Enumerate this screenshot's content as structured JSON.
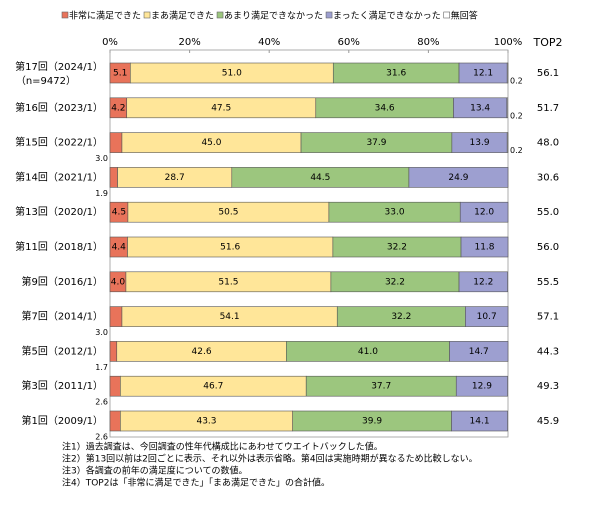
{
  "chart_data": {
    "type": "stacked-bar-horizontal",
    "categories": [
      "第17回（2024/1）",
      "第16回（2023/1）",
      "第15回（2022/1）",
      "第14回（2021/1）",
      "第13回（2020/1）",
      "第11回（2018/1）",
      "第9回（2016/1）",
      "第7回（2014/1）",
      "第5回（2012/1）",
      "第3回（2011/1）",
      "第1回（2009/1）"
    ],
    "category_note": "（n=9472）",
    "series": [
      {
        "name": "非常に満足できた",
        "color": "#e8735a",
        "values": [
          5.1,
          4.2,
          3.0,
          1.9,
          4.5,
          4.4,
          4.0,
          3.0,
          1.7,
          2.6,
          2.6
        ],
        "value_labels": [
          "5.1",
          "4.2",
          "3.0",
          "1.9",
          "4.5",
          "4.4",
          "4.0",
          "3.0",
          "1.7",
          "2.6",
          "2.6"
        ]
      },
      {
        "name": "まあ満足できた",
        "color": "#ffe699",
        "values": [
          51.0,
          47.5,
          45.0,
          28.7,
          50.5,
          51.6,
          51.5,
          54.1,
          42.6,
          46.7,
          43.3
        ],
        "value_labels": [
          "51.0",
          "47.5",
          "45.0",
          "28.7",
          "50.5",
          "51.6",
          "51.5",
          "54.1",
          "42.6",
          "46.7",
          "43.3"
        ]
      },
      {
        "name": "あまり満足できなかった",
        "color": "#9cc67e",
        "values": [
          31.6,
          34.6,
          37.9,
          44.5,
          33.0,
          32.2,
          32.2,
          32.2,
          41.0,
          37.7,
          39.9
        ],
        "value_labels": [
          "31.6",
          "34.6",
          "37.9",
          "44.5",
          "33.0",
          "32.2",
          "32.2",
          "32.2",
          "41.0",
          "37.7",
          "39.9"
        ]
      },
      {
        "name": "まったく満足できなかった",
        "color": "#9d9fd0",
        "values": [
          12.1,
          13.4,
          13.9,
          24.9,
          12.0,
          11.8,
          12.2,
          10.7,
          14.7,
          12.9,
          14.1
        ],
        "value_labels": [
          "12.1",
          "13.4",
          "13.9",
          "24.9",
          "12.0",
          "11.8",
          "12.2",
          "10.7",
          "14.7",
          "12.9",
          "14.1"
        ]
      },
      {
        "name": "無回答",
        "color": "#ffffff",
        "values": [
          0.2,
          0.2,
          0.2,
          null,
          null,
          null,
          null,
          null,
          null,
          null,
          null
        ],
        "value_labels": [
          "0.2",
          "0.2",
          "0.2",
          null,
          null,
          null,
          null,
          null,
          null,
          null,
          null
        ]
      }
    ],
    "top2": {
      "title": "TOP2",
      "values": [
        56.1,
        51.7,
        48.0,
        30.6,
        55.0,
        56.0,
        55.5,
        57.1,
        44.3,
        49.3,
        45.9
      ],
      "value_labels": [
        "56.1",
        "51.7",
        "48.0",
        "30.6",
        "55.0",
        "56.0",
        "55.5",
        "57.1",
        "44.3",
        "49.3",
        "45.9"
      ]
    },
    "xlim": [
      0,
      100
    ],
    "xticks": [
      {
        "value": 0,
        "label": "0%"
      },
      {
        "value": 20,
        "label": "20%"
      },
      {
        "value": 40,
        "label": "40%"
      },
      {
        "value": 60,
        "label": "60%"
      },
      {
        "value": 80,
        "label": "80%"
      },
      {
        "value": 100,
        "label": "100%"
      }
    ],
    "notes": [
      "注1）過去調査は、今回調査の性年代構成比にあわせてウエイトバックした値。",
      "注2）第13回以前は2回ごとに表示、それ以外は表示省略。第4回は実施時期が異なるため比較しない。",
      "注3）各調査の前年の満足度についての数値。",
      "注4）TOP2は「非常に満足できた」「まあ満足できた」の合計値。"
    ]
  }
}
